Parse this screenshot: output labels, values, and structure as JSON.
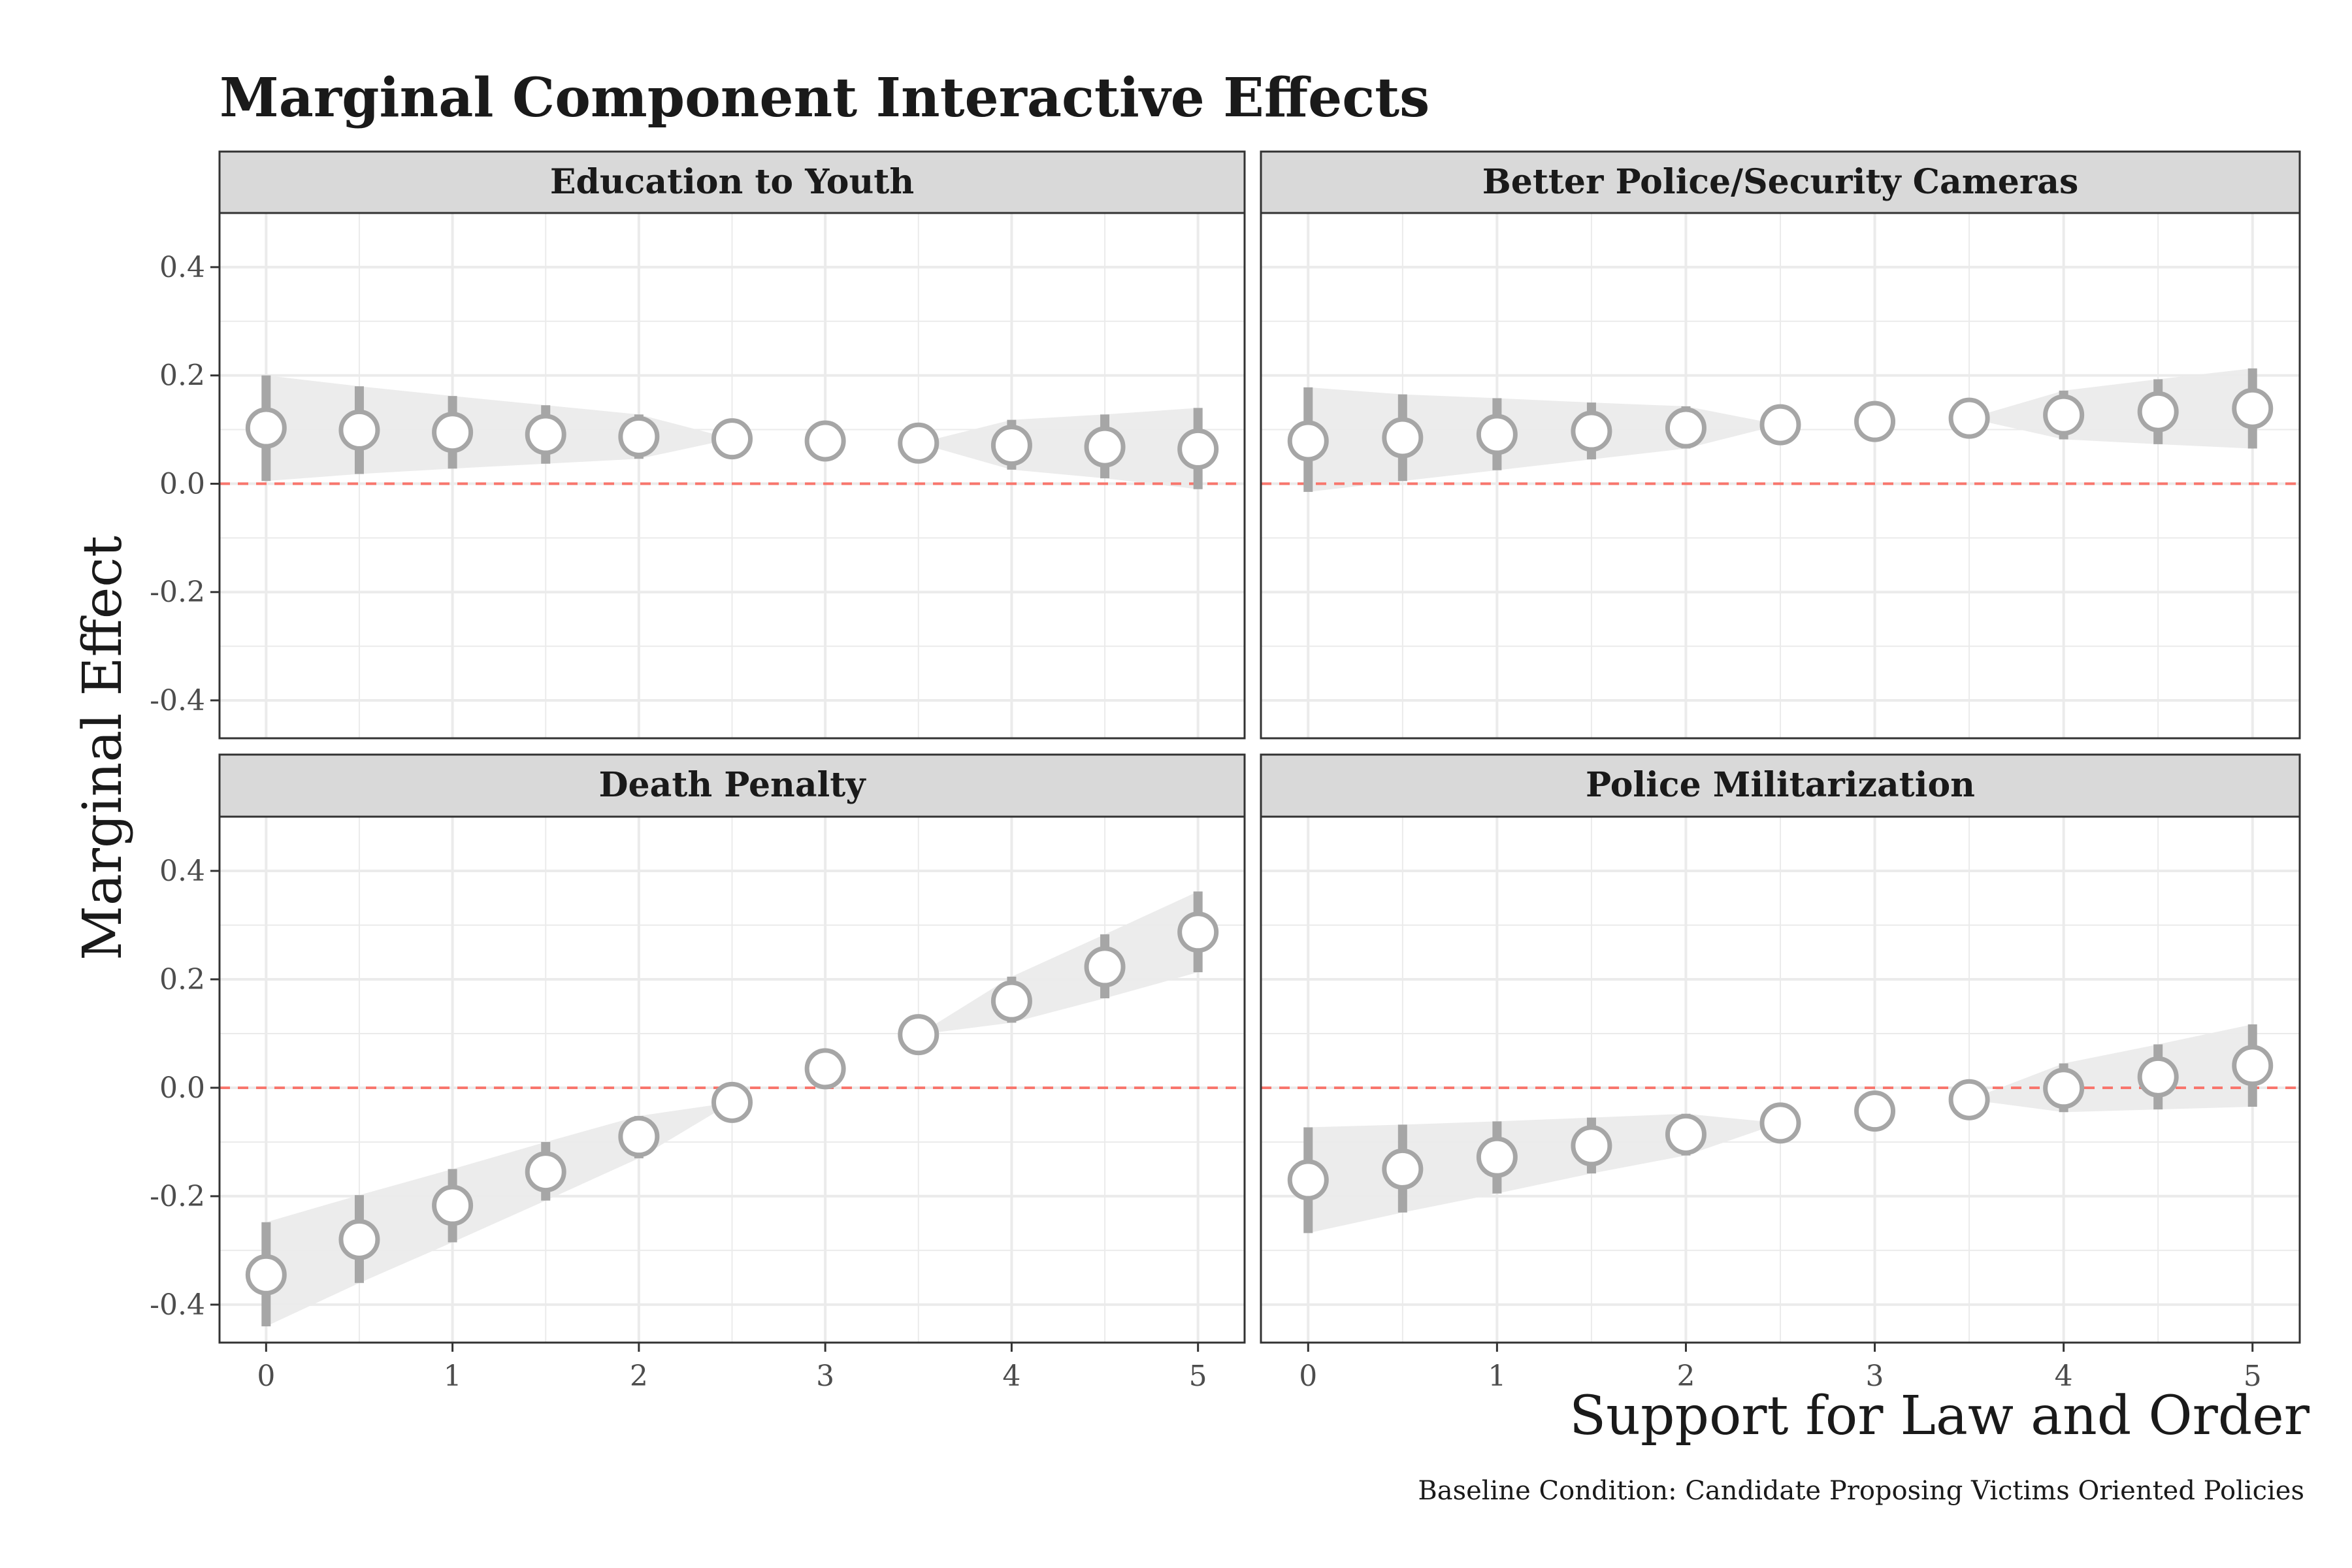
{
  "chart_data": {
    "type": "scatter",
    "title": "Marginal Component Interactive Effects",
    "xlabel": "Support for Law and Order",
    "ylabel": "Marginal Effect",
    "caption": "Baseline Condition: Candidate Proposing Victims Oriented Policies",
    "xlim": [
      -0.25,
      5.25
    ],
    "ylim": [
      -0.47,
      0.5
    ],
    "x_ticks": [
      0,
      1,
      2,
      3,
      4,
      5
    ],
    "y_ticks": [
      0.4,
      0.2,
      0.0,
      -0.2,
      -0.4
    ],
    "y_tick_labels": [
      "0.4",
      "0.2",
      "0.0",
      "-0.2",
      "-0.4"
    ],
    "x": [
      0,
      0.5,
      1,
      1.5,
      2,
      2.5,
      3,
      3.5,
      4,
      4.5,
      5
    ],
    "reference_line": 0,
    "grid": true,
    "colors": {
      "point_stroke": "#a6a6a6",
      "error_bar": "#a6a6a6",
      "band": "#ebebeb",
      "reference_line": "#f8766d",
      "strip": "#d9d9d9",
      "grid": "#ebebeb"
    },
    "panels": [
      {
        "name": "Education to Youth",
        "estimate": [
          0.103,
          0.099,
          0.095,
          0.091,
          0.087,
          0.083,
          0.079,
          0.075,
          0.071,
          0.068,
          0.064
        ],
        "lower": [
          0.005,
          0.018,
          0.028,
          0.037,
          0.046,
          0.083,
          0.079,
          0.075,
          0.026,
          0.01,
          -0.01
        ],
        "upper": [
          0.2,
          0.18,
          0.162,
          0.145,
          0.128,
          0.083,
          0.079,
          0.075,
          0.118,
          0.128,
          0.14
        ]
      },
      {
        "name": "Better Police/Security Cameras",
        "estimate": [
          0.079,
          0.085,
          0.091,
          0.097,
          0.103,
          0.109,
          0.115,
          0.121,
          0.127,
          0.133,
          0.139
        ],
        "lower": [
          -0.015,
          0.005,
          0.025,
          0.045,
          0.065,
          0.109,
          0.115,
          0.121,
          0.082,
          0.073,
          0.065
        ],
        "upper": [
          0.178,
          0.165,
          0.158,
          0.15,
          0.143,
          0.109,
          0.115,
          0.121,
          0.172,
          0.193,
          0.213
        ]
      },
      {
        "name": "Death Penalty",
        "estimate": [
          -0.345,
          -0.28,
          -0.217,
          -0.155,
          -0.09,
          -0.027,
          0.035,
          0.098,
          0.16,
          0.223,
          0.287
        ],
        "lower": [
          -0.44,
          -0.36,
          -0.285,
          -0.208,
          -0.13,
          -0.027,
          0.035,
          0.098,
          0.12,
          0.165,
          0.213
        ],
        "upper": [
          -0.248,
          -0.198,
          -0.15,
          -0.1,
          -0.052,
          -0.027,
          0.035,
          0.098,
          0.205,
          0.283,
          0.362
        ]
      },
      {
        "name": "Police Militarization",
        "estimate": [
          -0.17,
          -0.15,
          -0.128,
          -0.107,
          -0.086,
          -0.065,
          -0.043,
          -0.022,
          -0.001,
          0.02,
          0.041
        ],
        "lower": [
          -0.268,
          -0.23,
          -0.195,
          -0.158,
          -0.125,
          -0.065,
          -0.043,
          -0.022,
          -0.045,
          -0.04,
          -0.035
        ],
        "upper": [
          -0.073,
          -0.068,
          -0.062,
          -0.055,
          -0.048,
          -0.065,
          -0.043,
          -0.022,
          0.045,
          0.08,
          0.117
        ]
      }
    ]
  }
}
